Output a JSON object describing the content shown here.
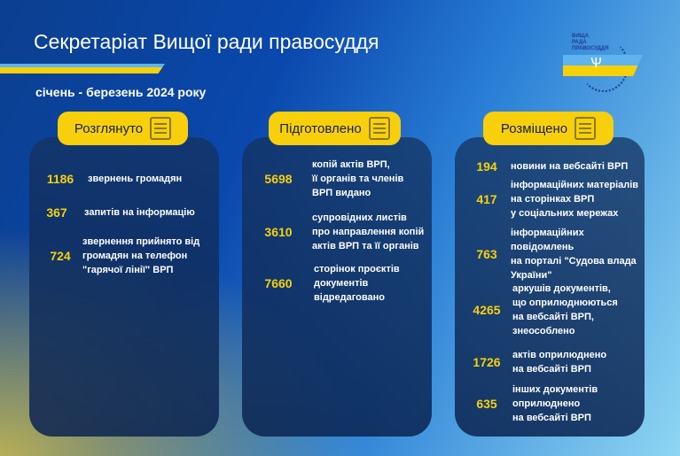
{
  "header": {
    "title": "Секретаріат Вищої ради правосуддя",
    "period": "січень - березень 2024 року",
    "logo_text": "ВИЩА\nРАДА\nПРАВОСУДДЯ"
  },
  "colors": {
    "yellow": "#f6d10a",
    "blue": "#5fb3ee"
  },
  "columns": [
    {
      "label": "Розглянуто",
      "icon": "document-arrows-icon",
      "items": [
        {
          "value": "1186",
          "text": "звернень громадян"
        },
        {
          "value": "367",
          "text": "запитів на інформацію"
        },
        {
          "value": "724",
          "text": "звернення прийнято від\nгромадян на телефон\n\"гарячої лінії\" ВРП"
        }
      ]
    },
    {
      "label": "Підготовлено",
      "icon": "document-stamp-icon",
      "items": [
        {
          "value": "5698",
          "text": "копій актів ВРП,\nїї органів та членів\nВРП видано"
        },
        {
          "value": "3610",
          "text": "супровідних листів\nпро направлення копій\nактів ВРП та її органів"
        },
        {
          "value": "7660",
          "text": "сторінок проєктів\nдокументів\nвідредаговано"
        }
      ]
    },
    {
      "label": "Розміщено",
      "icon": "monitor-icon",
      "items": [
        {
          "value": "194",
          "text": "новини на вебсайті ВРП"
        },
        {
          "value": "417",
          "text": "інформаційних матеріалів\nна сторінках ВРП\nу соціальних мережах"
        },
        {
          "value": "763",
          "text": "інформаційних\nповідомлень\nна порталі \"Судова влада\nУкраїни\""
        },
        {
          "value": "4265",
          "text": "аркушів документів,\nщо оприлюднюються\nна вебсайті ВРП,\nзнеособлено"
        },
        {
          "value": "1726",
          "text": "актів оприлюднено\nна вебсайті ВРП"
        },
        {
          "value": "635",
          "text": "інших документів\nоприлюднено\nна вебсайті ВРП"
        }
      ]
    }
  ]
}
